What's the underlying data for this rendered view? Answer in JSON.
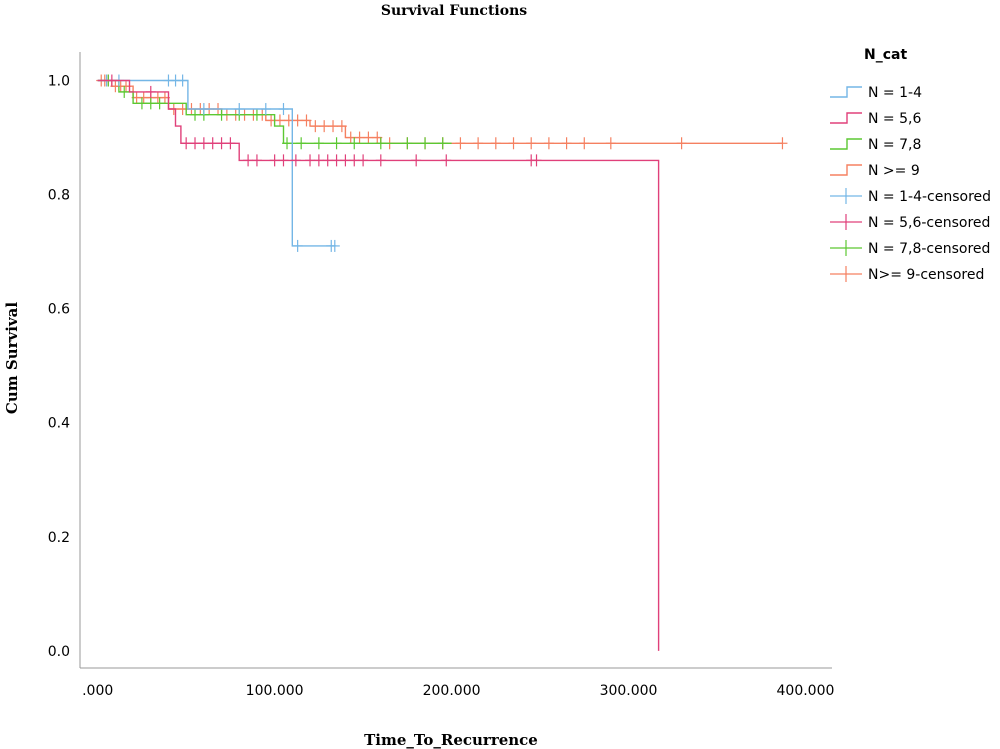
{
  "chart_data": {
    "type": "line",
    "title": "Survival Functions",
    "xlabel": "Time_To_Recurrence",
    "ylabel": "Cum Survival",
    "xlim": [
      -10000,
      415000
    ],
    "ylim": [
      -0.03,
      1.05
    ],
    "x_ticks": [
      0,
      100000,
      200000,
      300000,
      400000
    ],
    "x_tick_labels": [
      ".000",
      "100.000",
      "200.000",
      "300.000",
      "400.000"
    ],
    "y_ticks": [
      0.0,
      0.2,
      0.4,
      0.6,
      0.8,
      1.0
    ],
    "y_tick_labels": [
      "0.0",
      "0.2",
      "0.4",
      "0.6",
      "0.8",
      "1.0"
    ],
    "grid": false,
    "legend_title": "N_cat",
    "legend_placement": "right",
    "legend": [
      {
        "label": "N = 1-4",
        "color": "#74b6e6",
        "kind": "step"
      },
      {
        "label": "N = 5,6",
        "color": "#e0407a",
        "kind": "step"
      },
      {
        "label": "N = 7,8",
        "color": "#5cc832",
        "kind": "step"
      },
      {
        "label": "N >= 9",
        "color": "#f58060",
        "kind": "step"
      },
      {
        "label": "N = 1-4-censored",
        "color": "#74b6e6",
        "kind": "censor"
      },
      {
        "label": "N = 5,6-censored",
        "color": "#e0407a",
        "kind": "censor"
      },
      {
        "label": "N = 7,8-censored",
        "color": "#5cc832",
        "kind": "censor"
      },
      {
        "label": "N>= 9-censored",
        "color": "#f58060",
        "kind": "censor"
      }
    ],
    "series": [
      {
        "name": "N = 1-4",
        "color": "#74b6e6",
        "steps": [
          [
            0,
            1.0
          ],
          [
            51000,
            1.0
          ],
          [
            51000,
            0.95
          ],
          [
            110000,
            0.95
          ],
          [
            110000,
            0.71
          ],
          [
            134000,
            0.71
          ]
        ],
        "censored": [
          [
            5000,
            1.0
          ],
          [
            12000,
            1.0
          ],
          [
            40000,
            1.0
          ],
          [
            44000,
            1.0
          ],
          [
            48000,
            1.0
          ],
          [
            60000,
            0.95
          ],
          [
            80000,
            0.95
          ],
          [
            95000,
            0.95
          ],
          [
            105000,
            0.95
          ],
          [
            113000,
            0.71
          ],
          [
            132000,
            0.71
          ],
          [
            134000,
            0.71
          ]
        ]
      },
      {
        "name": "N = 5,6",
        "color": "#e0407a",
        "steps": [
          [
            0,
            1.0
          ],
          [
            18000,
            1.0
          ],
          [
            18000,
            0.98
          ],
          [
            40000,
            0.98
          ],
          [
            40000,
            0.95
          ],
          [
            44000,
            0.95
          ],
          [
            44000,
            0.92
          ],
          [
            47000,
            0.92
          ],
          [
            47000,
            0.89
          ],
          [
            80000,
            0.89
          ],
          [
            80000,
            0.86
          ],
          [
            317000,
            0.86
          ],
          [
            317000,
            0.0
          ]
        ],
        "censored": [
          [
            8000,
            1.0
          ],
          [
            30000,
            0.98
          ],
          [
            50000,
            0.89
          ],
          [
            55000,
            0.89
          ],
          [
            60000,
            0.89
          ],
          [
            65000,
            0.89
          ],
          [
            70000,
            0.89
          ],
          [
            75000,
            0.89
          ],
          [
            85000,
            0.86
          ],
          [
            90000,
            0.86
          ],
          [
            100000,
            0.86
          ],
          [
            105000,
            0.86
          ],
          [
            112000,
            0.86
          ],
          [
            120000,
            0.86
          ],
          [
            125000,
            0.86
          ],
          [
            130000,
            0.86
          ],
          [
            135000,
            0.86
          ],
          [
            140000,
            0.86
          ],
          [
            145000,
            0.86
          ],
          [
            150000,
            0.86
          ],
          [
            160000,
            0.86
          ],
          [
            180000,
            0.86
          ],
          [
            197000,
            0.86
          ],
          [
            245000,
            0.86
          ],
          [
            248000,
            0.86
          ]
        ]
      },
      {
        "name": "N = 7,8",
        "color": "#5cc832",
        "steps": [
          [
            0,
            1.0
          ],
          [
            12000,
            1.0
          ],
          [
            12000,
            0.98
          ],
          [
            20000,
            0.98
          ],
          [
            20000,
            0.96
          ],
          [
            50000,
            0.96
          ],
          [
            50000,
            0.94
          ],
          [
            100000,
            0.94
          ],
          [
            100000,
            0.92
          ],
          [
            105000,
            0.92
          ],
          [
            105000,
            0.89
          ],
          [
            200000,
            0.89
          ]
        ],
        "censored": [
          [
            6000,
            1.0
          ],
          [
            15000,
            0.98
          ],
          [
            25000,
            0.96
          ],
          [
            30000,
            0.96
          ],
          [
            35000,
            0.96
          ],
          [
            55000,
            0.94
          ],
          [
            60000,
            0.94
          ],
          [
            70000,
            0.94
          ],
          [
            80000,
            0.94
          ],
          [
            90000,
            0.94
          ],
          [
            107000,
            0.89
          ],
          [
            115000,
            0.89
          ],
          [
            125000,
            0.89
          ],
          [
            135000,
            0.89
          ],
          [
            145000,
            0.89
          ],
          [
            160000,
            0.89
          ],
          [
            175000,
            0.89
          ],
          [
            185000,
            0.89
          ],
          [
            195000,
            0.89
          ]
        ]
      },
      {
        "name": "N >= 9",
        "color": "#f58060",
        "steps": [
          [
            0,
            1.0
          ],
          [
            8000,
            1.0
          ],
          [
            8000,
            0.99
          ],
          [
            20000,
            0.99
          ],
          [
            20000,
            0.97
          ],
          [
            40000,
            0.97
          ],
          [
            40000,
            0.95
          ],
          [
            70000,
            0.95
          ],
          [
            70000,
            0.94
          ],
          [
            95000,
            0.94
          ],
          [
            95000,
            0.93
          ],
          [
            120000,
            0.93
          ],
          [
            120000,
            0.92
          ],
          [
            140000,
            0.92
          ],
          [
            140000,
            0.9
          ],
          [
            160000,
            0.9
          ],
          [
            160000,
            0.89
          ],
          [
            387000,
            0.89
          ]
        ],
        "censored": [
          [
            2000,
            1.0
          ],
          [
            4000,
            1.0
          ],
          [
            6000,
            1.0
          ],
          [
            10000,
            0.99
          ],
          [
            13000,
            0.99
          ],
          [
            16000,
            0.99
          ],
          [
            22000,
            0.97
          ],
          [
            26000,
            0.97
          ],
          [
            30000,
            0.97
          ],
          [
            34000,
            0.97
          ],
          [
            38000,
            0.97
          ],
          [
            43000,
            0.95
          ],
          [
            48000,
            0.95
          ],
          [
            53000,
            0.95
          ],
          [
            58000,
            0.95
          ],
          [
            63000,
            0.95
          ],
          [
            68000,
            0.95
          ],
          [
            73000,
            0.94
          ],
          [
            78000,
            0.94
          ],
          [
            83000,
            0.94
          ],
          [
            88000,
            0.94
          ],
          [
            93000,
            0.94
          ],
          [
            98000,
            0.93
          ],
          [
            103000,
            0.93
          ],
          [
            108000,
            0.93
          ],
          [
            113000,
            0.93
          ],
          [
            118000,
            0.93
          ],
          [
            123000,
            0.92
          ],
          [
            128000,
            0.92
          ],
          [
            133000,
            0.92
          ],
          [
            138000,
            0.92
          ],
          [
            143000,
            0.9
          ],
          [
            148000,
            0.9
          ],
          [
            153000,
            0.9
          ],
          [
            158000,
            0.9
          ],
          [
            165000,
            0.89
          ],
          [
            175000,
            0.89
          ],
          [
            185000,
            0.89
          ],
          [
            195000,
            0.89
          ],
          [
            205000,
            0.89
          ],
          [
            215000,
            0.89
          ],
          [
            225000,
            0.89
          ],
          [
            235000,
            0.89
          ],
          [
            245000,
            0.89
          ],
          [
            255000,
            0.89
          ],
          [
            265000,
            0.89
          ],
          [
            275000,
            0.89
          ],
          [
            290000,
            0.89
          ],
          [
            330000,
            0.89
          ],
          [
            387000,
            0.89
          ]
        ]
      }
    ]
  }
}
